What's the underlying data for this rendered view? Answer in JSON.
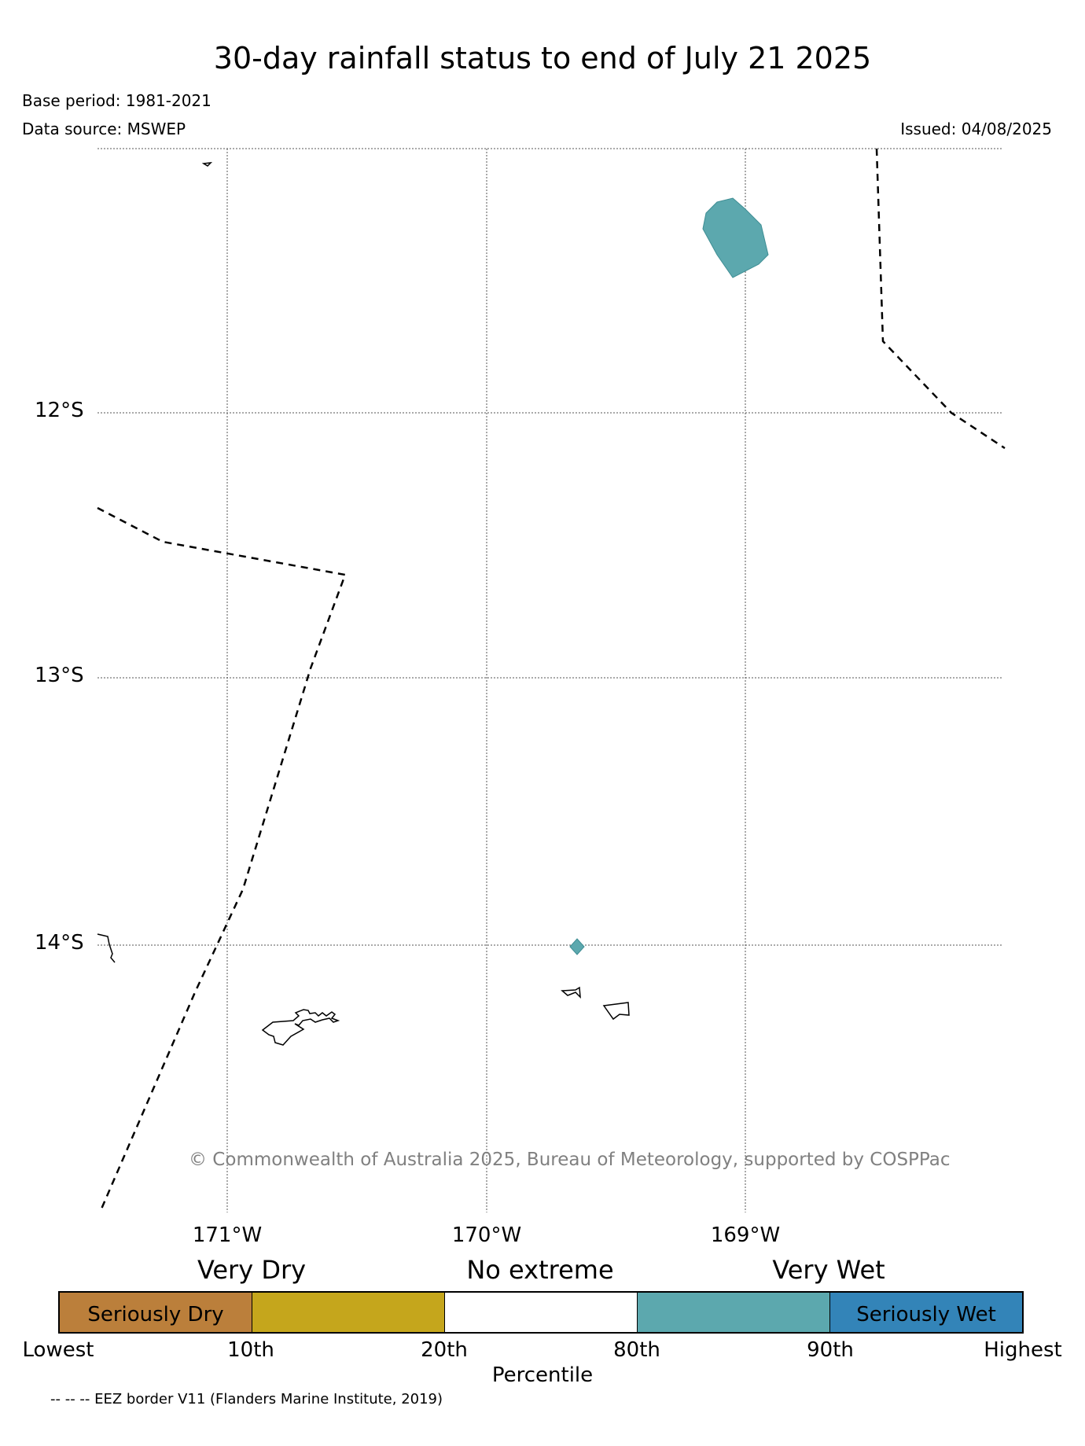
{
  "title": "30-day rainfall status to end of July 21 2025",
  "base_period": "Base period: 1981-2021",
  "data_source": "Data source: MSWEP",
  "issued": "Issued: 04/08/2025",
  "map": {
    "lat_labels": [
      "12°S",
      "13°S",
      "14°S"
    ],
    "lon_labels": [
      "171°W",
      "170°W",
      "169°W"
    ],
    "grid": "dotted",
    "copyright": "© Commonwealth of Australia 2025, Bureau of Meteorology, supported by COSPPac",
    "colors": {
      "seriously_dry": "#bb7f3b",
      "very_dry": "#c5a61c",
      "no_extreme": "#ffffff",
      "very_wet": "#5ca8ae",
      "seriously_wet": "#3384b8"
    }
  },
  "legend": {
    "upper_labels": [
      "Very Dry",
      "No extreme",
      "Very Wet"
    ],
    "segments": [
      {
        "label": "Seriously Dry",
        "color": "#bb7f3b"
      },
      {
        "label": "",
        "color": "#c5a61c"
      },
      {
        "label": "",
        "color": "#ffffff"
      },
      {
        "label": "",
        "color": "#5ca8ae"
      },
      {
        "label": "Seriously Wet",
        "color": "#3384b8"
      }
    ],
    "ticks": [
      "Lowest",
      "10th",
      "20th",
      "80th",
      "90th",
      "Highest"
    ],
    "axis_label": "Percentile"
  },
  "eez_note": "-- -- -- EEZ border V11 (Flanders Marine Institute, 2019)"
}
